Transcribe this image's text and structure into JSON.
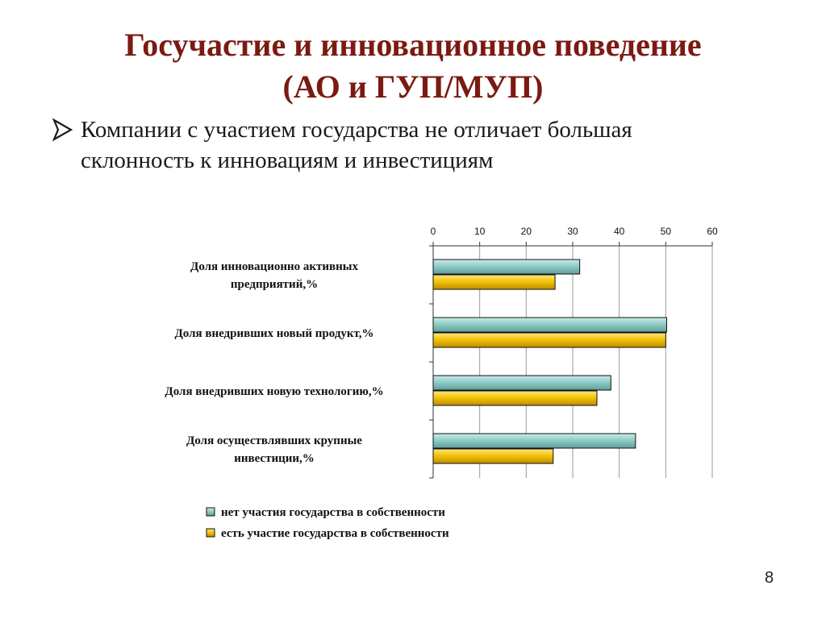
{
  "slide": {
    "title_line1": "Госучастие и инновационное поведение",
    "title_line2": "(АО и ГУП/МУП)",
    "bullet_text_line1": "Компании с участием государства не отличает большая",
    "bullet_text_line2": "склонность к инновациям и инвестициям",
    "page_number": "8"
  },
  "chart_data": {
    "type": "bar",
    "orientation": "horizontal",
    "categories": [
      [
        "Доля инновационно активных",
        "предприятий,%"
      ],
      [
        "Доля внедривших новый продукт,%"
      ],
      [
        "Доля внедривших новую технологию,%"
      ],
      [
        "Доля осуществлявших крупные",
        "инвестиции,%"
      ]
    ],
    "series": [
      {
        "name": "нет участия государства в собственности",
        "color": "#8cc8c4",
        "values": [
          31.5,
          50.2,
          38.2,
          43.5
        ]
      },
      {
        "name": "есть участие государства в собственности",
        "color": "#f0c000",
        "values": [
          26.2,
          50.0,
          35.2,
          25.8
        ]
      }
    ],
    "xlim": [
      0,
      60
    ],
    "xticks": [
      0,
      10,
      20,
      30,
      40,
      50,
      60
    ],
    "axis_position": "top",
    "grid": true,
    "legend_position": "bottom"
  }
}
